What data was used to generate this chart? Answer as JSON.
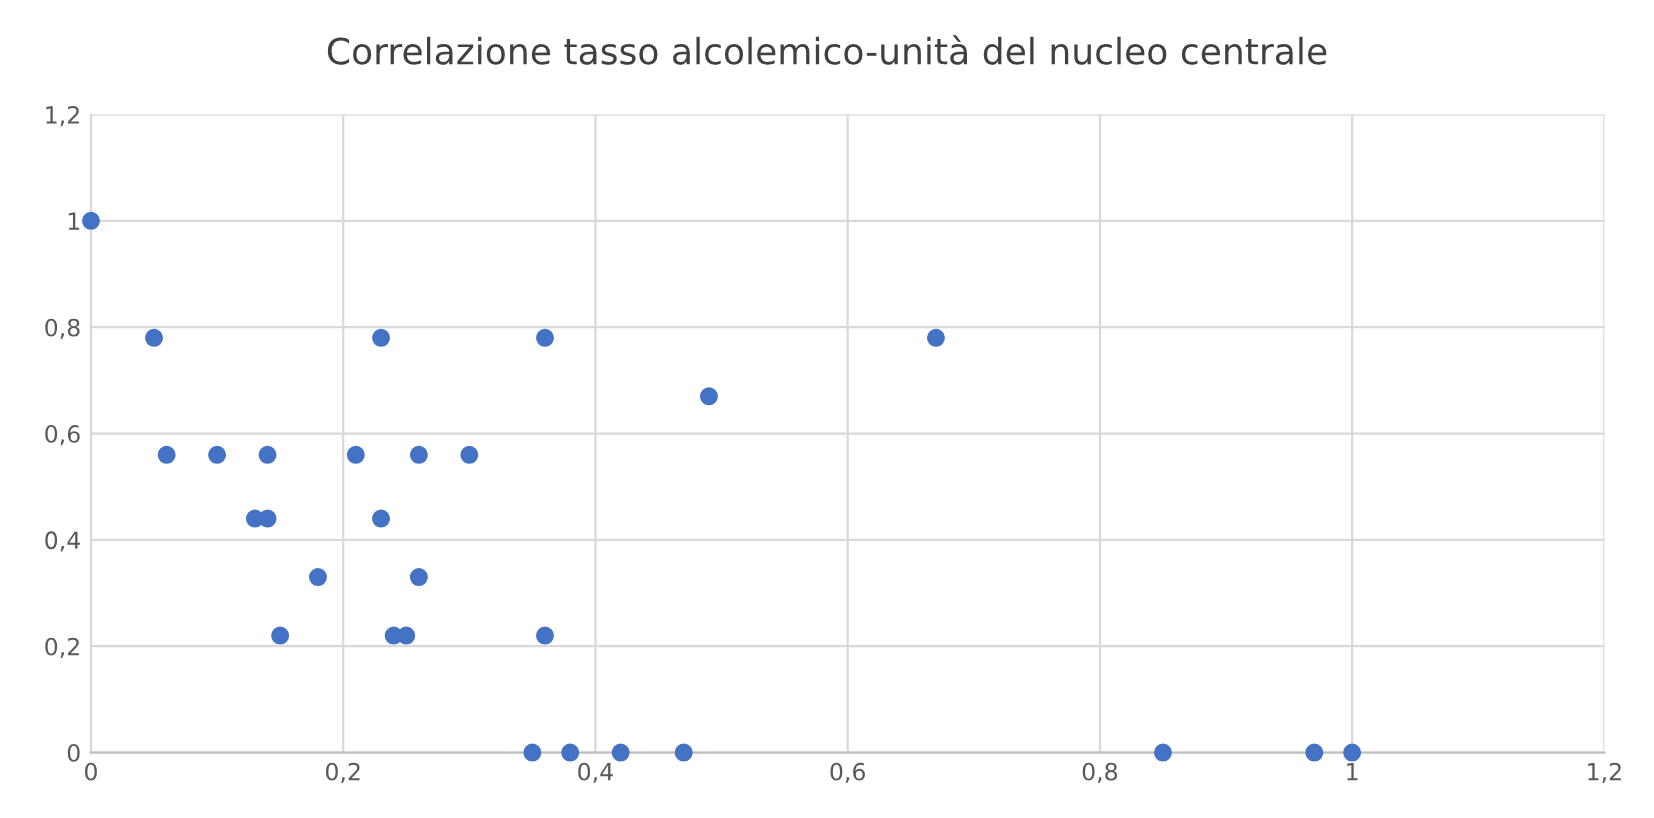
{
  "chart_data": {
    "type": "scatter",
    "title": "Correlazione tasso alcolemico-unità del nucleo centrale",
    "series": [
      {
        "color": "#4472c4",
        "x": [
          0,
          0.05,
          0.06,
          0.1,
          0.14,
          0.13,
          0.14,
          0.18,
          0.15,
          0.21,
          0.23,
          0.23,
          0.26,
          0.26,
          0.24,
          0.25,
          0.3,
          0.36,
          0.36,
          0.35,
          0.38,
          0.42,
          0.47,
          0.49,
          0.67,
          0.85,
          0.97,
          1
        ],
        "values": [
          1,
          0.78,
          0.56,
          0.56,
          0.56,
          0.44,
          0.44,
          0.33,
          0.22,
          0.56,
          0.78,
          0.44,
          0.56,
          0.33,
          0.22,
          0.22,
          0.56,
          0.78,
          0.22,
          0,
          0,
          0,
          0,
          0.67,
          0.78,
          0,
          0,
          0
        ]
      }
    ],
    "xlim": [
      0,
      1.2
    ],
    "ylim": [
      0,
      1.2
    ],
    "xticks": [
      {
        "value": 0,
        "label": "0"
      },
      {
        "value": 0.2,
        "label": "0,2"
      },
      {
        "value": 0.4,
        "label": "0,4"
      },
      {
        "value": 0.6,
        "label": "0,6"
      },
      {
        "value": 0.8,
        "label": "0,8"
      },
      {
        "value": 1,
        "label": "1"
      },
      {
        "value": 1.2,
        "label": "1,2"
      }
    ],
    "yticks": [
      {
        "value": 0,
        "label": "0"
      },
      {
        "value": 0.2,
        "label": "0,2"
      },
      {
        "value": 0.4,
        "label": "0,4"
      },
      {
        "value": 0.6,
        "label": "0,6"
      },
      {
        "value": 0.8,
        "label": "0,8"
      },
      {
        "value": 1,
        "label": "1"
      },
      {
        "value": 1.2,
        "label": "1,2"
      }
    ],
    "grid": true,
    "marker": "circle"
  }
}
